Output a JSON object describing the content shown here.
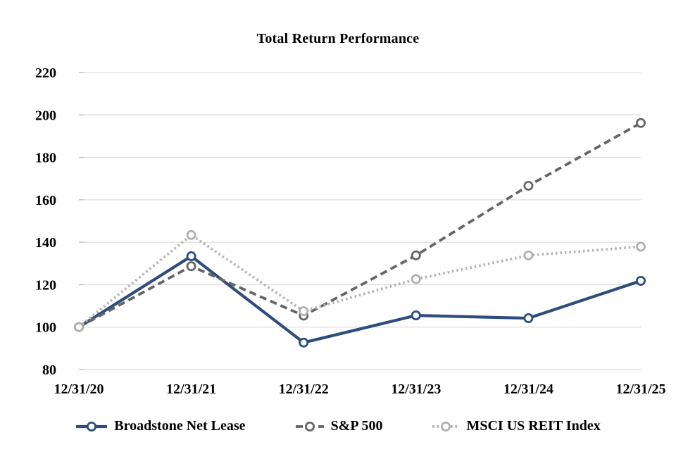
{
  "chart_data": {
    "type": "line",
    "title": "Total Return Performance",
    "categories": [
      "12/31/20",
      "12/31/21",
      "12/31/22",
      "12/31/23",
      "12/31/24",
      "12/31/25"
    ],
    "xlabel": "",
    "ylabel": "",
    "ylim": [
      80,
      220
    ],
    "ytick_step": 20,
    "grid": true,
    "legend_position": "bottom",
    "series": [
      {
        "name": "Broadstone Net Lease",
        "line_style": "solid",
        "marker": "open-circle",
        "color": "#2e4c7c",
        "values": [
          100,
          133.4,
          92.7,
          105.5,
          104.2,
          121.8
        ]
      },
      {
        "name": "S&P 500",
        "line_style": "dashed",
        "marker": "open-circle",
        "color": "#666666",
        "values": [
          100,
          128.7,
          105.4,
          133.8,
          166.6,
          196.2
        ]
      },
      {
        "name": "MSCI US REIT Index",
        "line_style": "dotted",
        "marker": "open-circle",
        "color": "#b1b1b1",
        "values": [
          100,
          143.4,
          107.5,
          122.6,
          133.8,
          137.9
        ]
      }
    ],
    "style_colors": {
      "gridline": "#dedede",
      "axis_tick": "#bfbfbf",
      "text": "#000000",
      "marker_fill": "#ffffff"
    }
  }
}
